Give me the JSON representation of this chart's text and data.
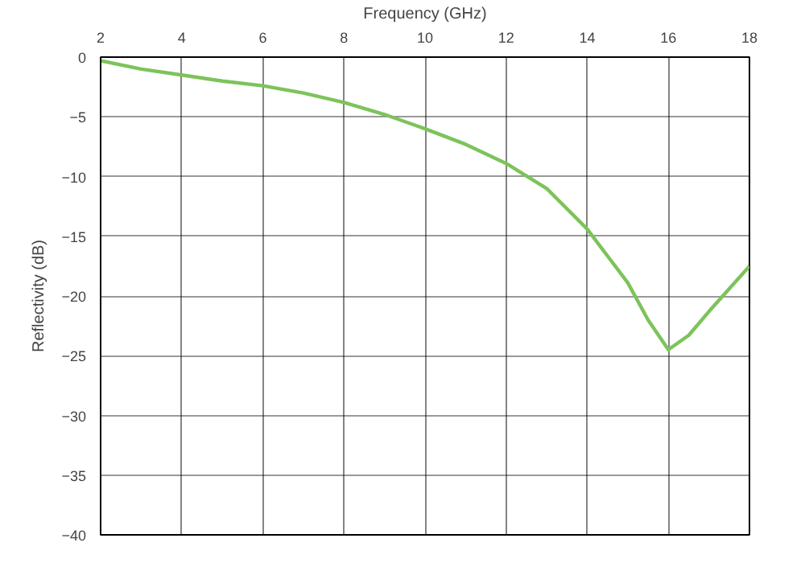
{
  "chart_data": {
    "type": "line",
    "xlabel": "Frequency (GHz)",
    "ylabel": "Reflectivity (dB)",
    "x": [
      2,
      3,
      4,
      5,
      6,
      7,
      8,
      9,
      10,
      11,
      12,
      13,
      14,
      15,
      15.5,
      16,
      16.5,
      17,
      18
    ],
    "series": [
      {
        "color": "#7dc35b",
        "values": [
          -0.3,
          -1.0,
          -1.5,
          -2.0,
          -2.4,
          -3.0,
          -3.8,
          -4.8,
          -6.0,
          -7.3,
          -8.9,
          -11.0,
          -14.4,
          -18.9,
          -22.0,
          -24.5,
          -23.3,
          -21.3,
          -17.5
        ]
      }
    ],
    "xlim": [
      2,
      18
    ],
    "xticks": [
      2,
      4,
      6,
      8,
      10,
      12,
      14,
      16,
      18
    ],
    "ylim": [
      -40,
      0
    ],
    "yticks": [
      -40,
      -35,
      -30,
      -25,
      -20,
      -15,
      -10,
      -5,
      0
    ],
    "grid": true,
    "line_style": "solid"
  }
}
